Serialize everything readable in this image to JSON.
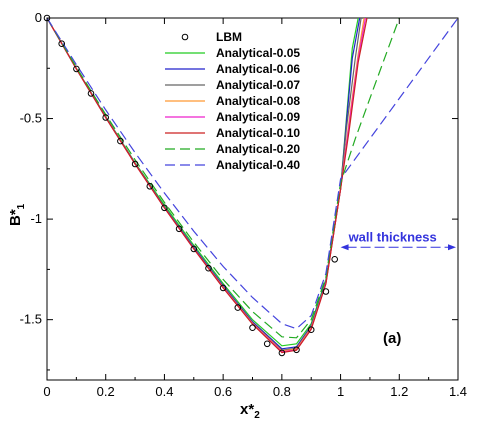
{
  "chart_data": {
    "type": "line",
    "xlabel_main": "x*",
    "xlabel_sub": "2",
    "ylabel_main": "B*",
    "ylabel_sub": "1",
    "xlim": [
      0,
      1.4
    ],
    "ylim": [
      -1.8,
      0
    ],
    "xticks": [
      "0",
      "0.2",
      "0.4",
      "0.6",
      "0.8",
      "1",
      "1.2",
      "1.4"
    ],
    "yticks": [
      "0",
      "-0.5",
      "-1",
      "-1.5"
    ],
    "panel_label": "(a)",
    "annotation": {
      "text": "wall thickness",
      "color": "#3333dd",
      "arrow_x_range": [
        1.0,
        1.4
      ],
      "arrow_y": -1.14
    },
    "legend_position": "top-center",
    "lbm": {
      "name": "LBM",
      "marker": "open-circle",
      "x": [
        0.0,
        0.05,
        0.1,
        0.15,
        0.2,
        0.25,
        0.3,
        0.35,
        0.4,
        0.45,
        0.5,
        0.55,
        0.6,
        0.65,
        0.7,
        0.75,
        0.8,
        0.85,
        0.9,
        0.95,
        0.98
      ],
      "y": [
        0.0,
        -0.128,
        -0.253,
        -0.375,
        -0.495,
        -0.612,
        -0.726,
        -0.837,
        -0.944,
        -1.048,
        -1.148,
        -1.244,
        -1.342,
        -1.44,
        -1.54,
        -1.62,
        -1.665,
        -1.65,
        -1.55,
        -1.36,
        -1.2
      ]
    },
    "series": [
      {
        "name": "Analytical-0.05",
        "color": "#22cc22",
        "dash": "solid",
        "x": [
          0,
          0.1,
          0.2,
          0.3,
          0.4,
          0.5,
          0.6,
          0.7,
          0.8,
          0.85,
          0.9,
          0.95,
          1.0,
          1.02,
          1.04,
          1.06
        ],
        "y": [
          0,
          -0.25,
          -0.49,
          -0.72,
          -0.93,
          -1.13,
          -1.32,
          -1.5,
          -1.63,
          -1.62,
          -1.52,
          -1.3,
          -0.85,
          -0.5,
          -0.15,
          0.0
        ]
      },
      {
        "name": "Analytical-0.06",
        "color": "#2222cc",
        "dash": "solid",
        "x": [
          0,
          0.1,
          0.2,
          0.3,
          0.4,
          0.5,
          0.6,
          0.7,
          0.8,
          0.85,
          0.9,
          0.95,
          1.0,
          1.02,
          1.04,
          1.065
        ],
        "y": [
          0,
          -0.252,
          -0.493,
          -0.723,
          -0.94,
          -1.14,
          -1.33,
          -1.51,
          -1.645,
          -1.635,
          -1.53,
          -1.31,
          -0.85,
          -0.52,
          -0.2,
          0.0
        ]
      },
      {
        "name": "Analytical-0.07",
        "color": "#666666",
        "dash": "solid",
        "x": [
          0,
          0.1,
          0.2,
          0.3,
          0.4,
          0.5,
          0.6,
          0.7,
          0.8,
          0.85,
          0.9,
          0.95,
          1.0,
          1.02,
          1.05,
          1.07
        ],
        "y": [
          0,
          -0.253,
          -0.495,
          -0.725,
          -0.943,
          -1.145,
          -1.335,
          -1.515,
          -1.652,
          -1.642,
          -1.535,
          -1.315,
          -0.85,
          -0.55,
          -0.2,
          0.0
        ]
      },
      {
        "name": "Analytical-0.08",
        "color": "#ff9933",
        "dash": "solid",
        "x": [
          0,
          0.1,
          0.2,
          0.3,
          0.4,
          0.5,
          0.6,
          0.7,
          0.8,
          0.85,
          0.9,
          0.95,
          1.0,
          1.03,
          1.06,
          1.08
        ],
        "y": [
          0,
          -0.253,
          -0.495,
          -0.726,
          -0.944,
          -1.147,
          -1.338,
          -1.518,
          -1.656,
          -1.646,
          -1.54,
          -1.318,
          -0.85,
          -0.5,
          -0.18,
          0.0
        ]
      },
      {
        "name": "Analytical-0.09",
        "color": "#ee22cc",
        "dash": "solid",
        "x": [
          0,
          0.1,
          0.2,
          0.3,
          0.4,
          0.5,
          0.6,
          0.7,
          0.8,
          0.85,
          0.9,
          0.95,
          1.0,
          1.03,
          1.06,
          1.085
        ],
        "y": [
          0,
          -0.253,
          -0.495,
          -0.726,
          -0.944,
          -1.148,
          -1.34,
          -1.52,
          -1.66,
          -1.65,
          -1.545,
          -1.32,
          -0.85,
          -0.52,
          -0.2,
          0.0
        ]
      },
      {
        "name": "Analytical-0.10",
        "color": "#cc2222",
        "dash": "solid",
        "x": [
          0,
          0.1,
          0.2,
          0.3,
          0.4,
          0.5,
          0.6,
          0.7,
          0.8,
          0.85,
          0.9,
          0.95,
          1.0,
          1.03,
          1.06,
          1.09
        ],
        "y": [
          0,
          -0.253,
          -0.495,
          -0.726,
          -0.944,
          -1.148,
          -1.342,
          -1.522,
          -1.664,
          -1.652,
          -1.548,
          -1.322,
          -0.85,
          -0.55,
          -0.22,
          0.0
        ]
      },
      {
        "name": "Analytical-0.20",
        "color": "#22aa22",
        "dash": "long",
        "x": [
          0,
          0.1,
          0.2,
          0.3,
          0.4,
          0.5,
          0.6,
          0.7,
          0.8,
          0.85,
          0.9,
          0.95,
          1.0,
          1.05,
          1.1,
          1.15,
          1.2
        ],
        "y": [
          0,
          -0.245,
          -0.48,
          -0.705,
          -0.917,
          -1.115,
          -1.3,
          -1.46,
          -1.585,
          -1.59,
          -1.5,
          -1.29,
          -0.82,
          -0.6,
          -0.4,
          -0.2,
          0.0
        ]
      },
      {
        "name": "Analytical-0.40",
        "color": "#4444dd",
        "dash": "long",
        "x": [
          0,
          0.1,
          0.2,
          0.3,
          0.4,
          0.5,
          0.6,
          0.7,
          0.8,
          0.85,
          0.9,
          0.95,
          1.0,
          1.1,
          1.2,
          1.3,
          1.4
        ],
        "y": [
          0,
          -0.232,
          -0.457,
          -0.67,
          -0.87,
          -1.06,
          -1.235,
          -1.39,
          -1.52,
          -1.545,
          -1.48,
          -1.27,
          -0.8,
          -0.6,
          -0.4,
          -0.2,
          0.0
        ]
      }
    ]
  }
}
